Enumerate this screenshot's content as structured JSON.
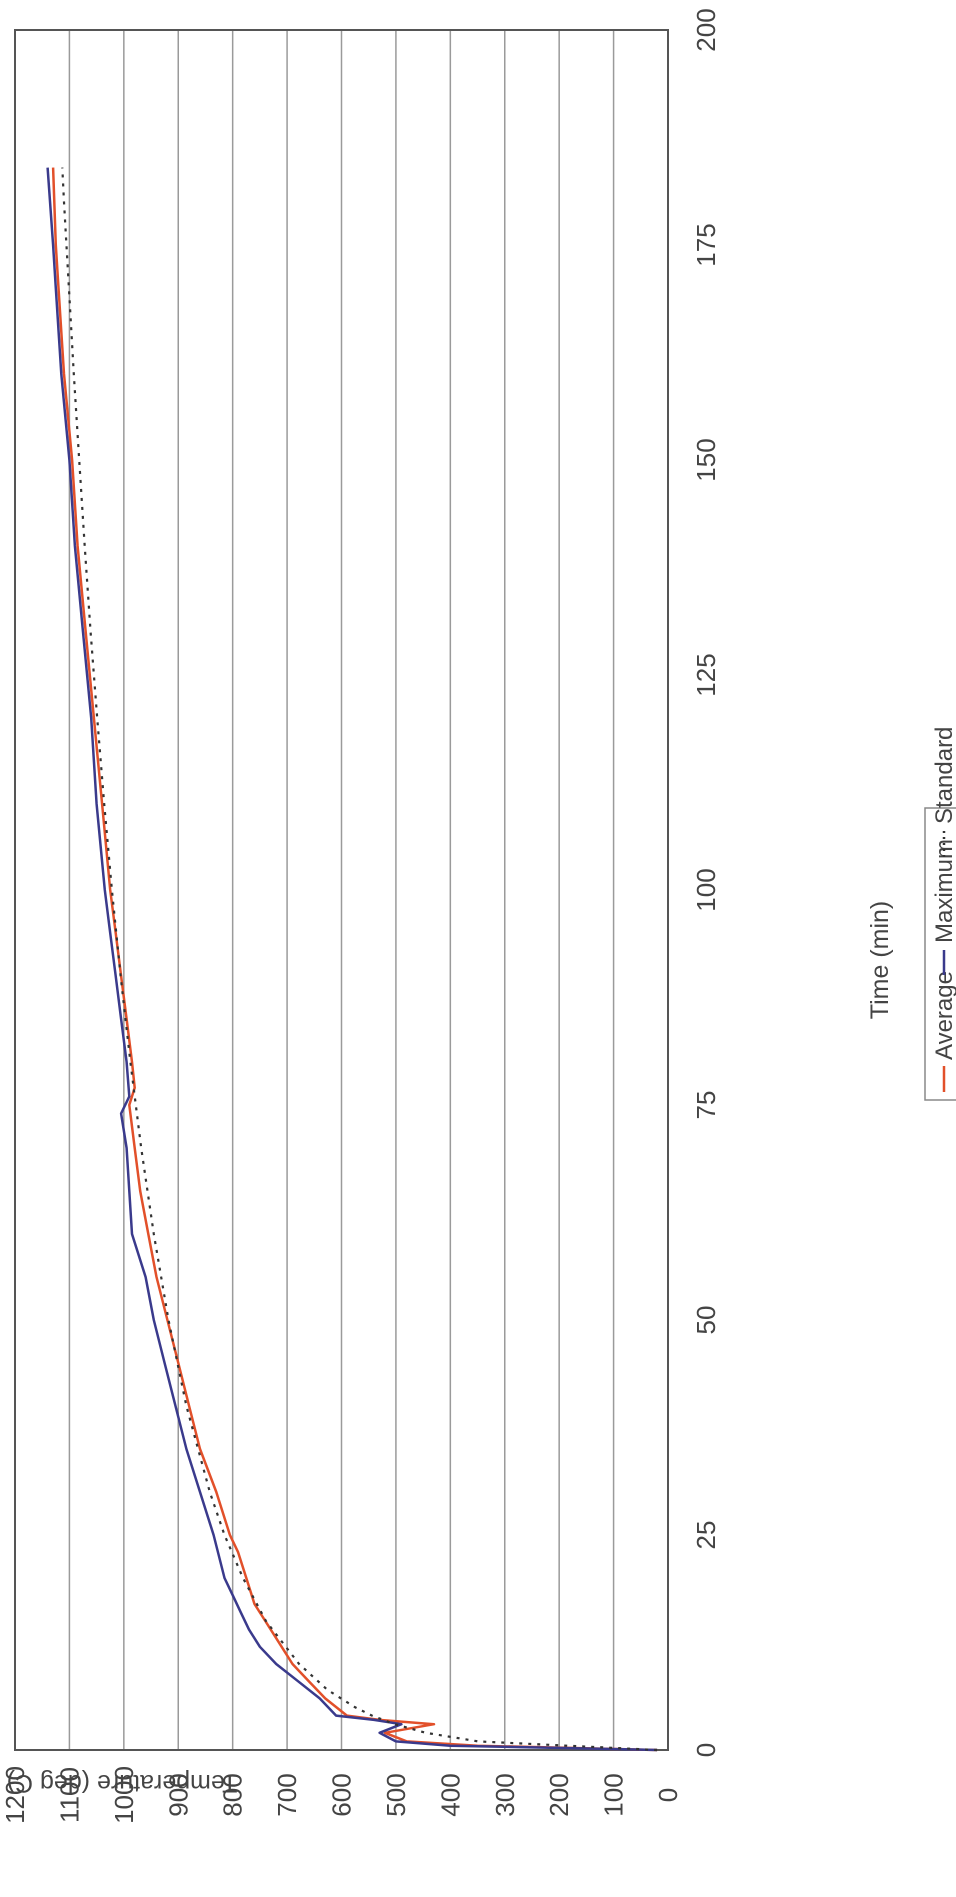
{
  "chart_data": {
    "type": "line",
    "orientation": "rotated 90 degrees clockwise (time axis runs top to bottom)",
    "xlabel": "Time (min)",
    "ylabel": "Temperature (deg C)",
    "xlim": [
      0,
      200
    ],
    "ylim": [
      0,
      1200
    ],
    "x_ticks": [
      "0",
      "25",
      "50",
      "75",
      "100",
      "125",
      "150",
      "175",
      "200"
    ],
    "y_ticks": [
      "0",
      "100",
      "200",
      "300",
      "400",
      "500",
      "600",
      "700",
      "800",
      "900",
      "1000",
      "1100",
      "1200"
    ],
    "grid": "horizontal lines at every 100 deg C",
    "legend_position": "bottom",
    "series": [
      {
        "name": "Average",
        "color": "#e2502a",
        "style": "solid",
        "points": [
          [
            0,
            20
          ],
          [
            0.5,
            350
          ],
          [
            1,
            480
          ],
          [
            2,
            520
          ],
          [
            3,
            430
          ],
          [
            3.5,
            530
          ],
          [
            4,
            590
          ],
          [
            6,
            630
          ],
          [
            8,
            660
          ],
          [
            10,
            690
          ],
          [
            13,
            720
          ],
          [
            15,
            740
          ],
          [
            17,
            760
          ],
          [
            20,
            775
          ],
          [
            23,
            790
          ],
          [
            25,
            805
          ],
          [
            30,
            830
          ],
          [
            35,
            860
          ],
          [
            40,
            880
          ],
          [
            45,
            900
          ],
          [
            50,
            920
          ],
          [
            55,
            940
          ],
          [
            60,
            955
          ],
          [
            65,
            970
          ],
          [
            70,
            980
          ],
          [
            75,
            990
          ],
          [
            77,
            980
          ],
          [
            80,
            985
          ],
          [
            85,
            995
          ],
          [
            90,
            1005
          ],
          [
            95,
            1015
          ],
          [
            100,
            1025
          ],
          [
            110,
            1040
          ],
          [
            120,
            1055
          ],
          [
            130,
            1070
          ],
          [
            140,
            1085
          ],
          [
            150,
            1095
          ],
          [
            160,
            1110
          ],
          [
            170,
            1120
          ],
          [
            175,
            1125
          ],
          [
            184,
            1130
          ]
        ]
      },
      {
        "name": "Maximum",
        "color": "#3a3a8c",
        "style": "solid",
        "points": [
          [
            0,
            20
          ],
          [
            0.5,
            400
          ],
          [
            1,
            500
          ],
          [
            2,
            530
          ],
          [
            3,
            490
          ],
          [
            3.5,
            540
          ],
          [
            4,
            610
          ],
          [
            6,
            640
          ],
          [
            8,
            680
          ],
          [
            10,
            720
          ],
          [
            12,
            750
          ],
          [
            14,
            770
          ],
          [
            16,
            785
          ],
          [
            18,
            800
          ],
          [
            20,
            815
          ],
          [
            25,
            835
          ],
          [
            30,
            860
          ],
          [
            35,
            885
          ],
          [
            40,
            905
          ],
          [
            45,
            925
          ],
          [
            50,
            945
          ],
          [
            55,
            960
          ],
          [
            60,
            985
          ],
          [
            65,
            990
          ],
          [
            70,
            995
          ],
          [
            74,
            1005
          ],
          [
            76,
            990
          ],
          [
            80,
            995
          ],
          [
            85,
            1005
          ],
          [
            90,
            1015
          ],
          [
            95,
            1025
          ],
          [
            100,
            1035
          ],
          [
            110,
            1050
          ],
          [
            120,
            1060
          ],
          [
            130,
            1075
          ],
          [
            140,
            1090
          ],
          [
            150,
            1100
          ],
          [
            160,
            1115
          ],
          [
            170,
            1125
          ],
          [
            175,
            1130
          ],
          [
            184,
            1140
          ]
        ]
      },
      {
        "name": "Standard",
        "color": "#333333",
        "style": "dotted",
        "points": [
          [
            0,
            20
          ],
          [
            1,
            349
          ],
          [
            2,
            445
          ],
          [
            3,
            502
          ],
          [
            4,
            544
          ],
          [
            5,
            576
          ],
          [
            7,
            626
          ],
          [
            10,
            678
          ],
          [
            15,
            739
          ],
          [
            20,
            781
          ],
          [
            25,
            815
          ],
          [
            30,
            842
          ],
          [
            40,
            885
          ],
          [
            50,
            918
          ],
          [
            60,
            945
          ],
          [
            70,
            968
          ],
          [
            80,
            988
          ],
          [
            90,
            1006
          ],
          [
            100,
            1022
          ],
          [
            110,
            1036
          ],
          [
            120,
            1049
          ],
          [
            130,
            1061
          ],
          [
            140,
            1072
          ],
          [
            150,
            1082
          ],
          [
            160,
            1092
          ],
          [
            170,
            1101
          ],
          [
            180,
            1110
          ],
          [
            184,
            1113
          ]
        ]
      }
    ]
  }
}
